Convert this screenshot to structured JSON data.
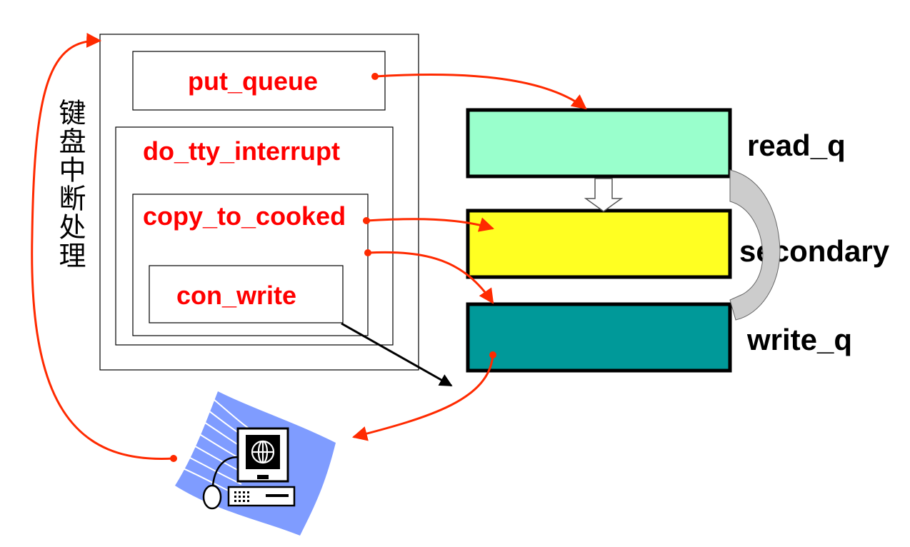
{
  "vertical_label": "键盘中断处理",
  "functions": {
    "put_queue": "put_queue",
    "do_tty_interrupt": "do_tty_interrupt",
    "copy_to_cooked": "copy_to_cooked",
    "con_write": "con_write"
  },
  "queues": {
    "read_q": "read_q",
    "secondary": "secondary",
    "write_q": "write_q"
  },
  "colors": {
    "read_q_fill": "#99ffcc",
    "secondary_fill": "#ffff22",
    "write_q_fill": "#009999",
    "label_red": "#ff0000",
    "arrow_red": "#ff2a00",
    "curved_band": "#cccccc",
    "computer_fan": "#7f9cff"
  },
  "icons": [
    "computer-icon",
    "globe-icon",
    "mouse-icon",
    "keyboard-icon"
  ]
}
